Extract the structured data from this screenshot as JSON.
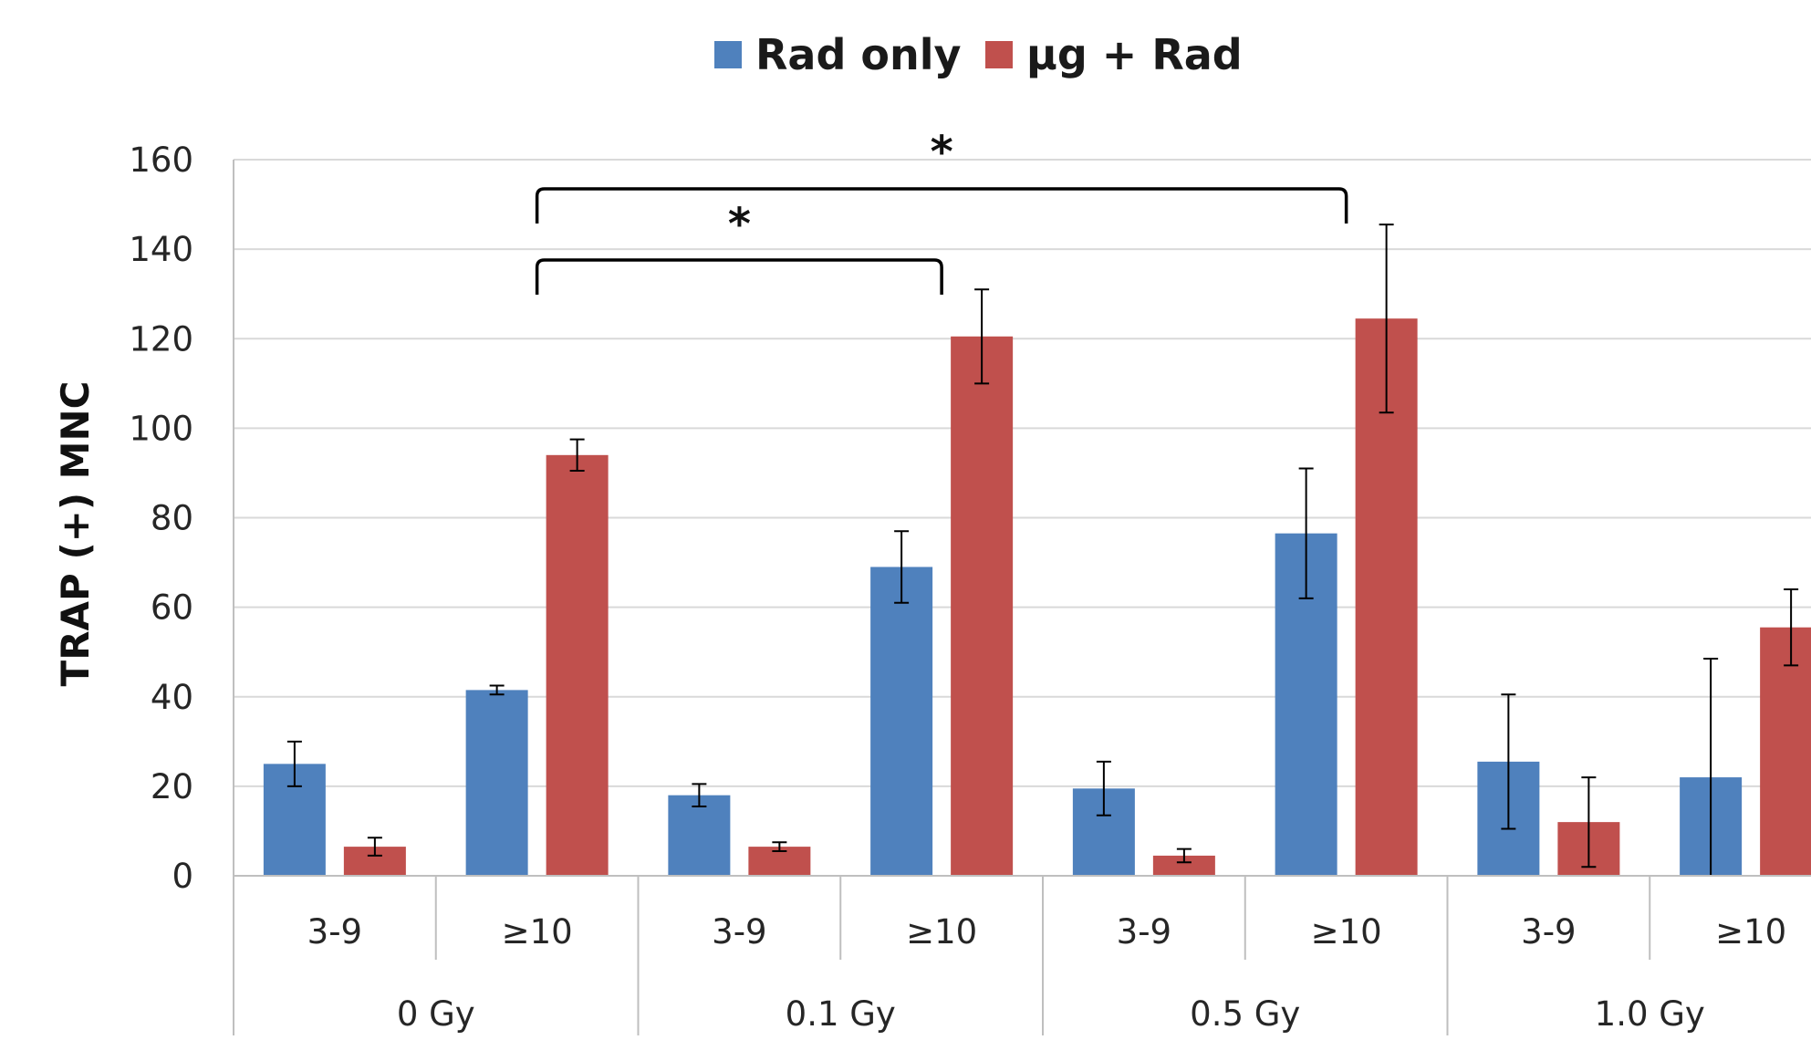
{
  "chart_data": {
    "type": "bar",
    "title": "",
    "xlabel": "",
    "ylabel": "TRAP (+) MNC",
    "ylim": [
      0,
      160
    ],
    "yticks": [
      0,
      20,
      40,
      60,
      80,
      100,
      120,
      140,
      160
    ],
    "grid": true,
    "legend_position": "top-center",
    "groups": [
      "0 Gy",
      "0.1 Gy",
      "0.5 Gy",
      "1.0 Gy"
    ],
    "subcategories": [
      "3-9",
      "≥10"
    ],
    "series": [
      {
        "name": "Rad only",
        "color": "#4f81bd",
        "values": [
          25,
          41.5,
          18,
          69,
          19.5,
          76.5,
          25.5,
          22
        ],
        "errors": [
          5,
          1,
          2.5,
          8,
          6,
          14.5,
          15,
          26.5
        ]
      },
      {
        "name": "µg + Rad",
        "color": "#c0504d",
        "values": [
          6.5,
          94,
          6.5,
          120.5,
          4.5,
          124.5,
          12,
          55.5
        ],
        "errors": [
          2,
          3.5,
          1,
          10.5,
          1.5,
          21,
          10,
          8.5
        ]
      }
    ],
    "annotations": [
      {
        "text": "*",
        "from": "0 Gy ≥10",
        "to": "0.1 Gy ≥10"
      },
      {
        "text": "*",
        "from": "0 Gy ≥10",
        "to": "0.5 Gy ≥10"
      }
    ]
  }
}
